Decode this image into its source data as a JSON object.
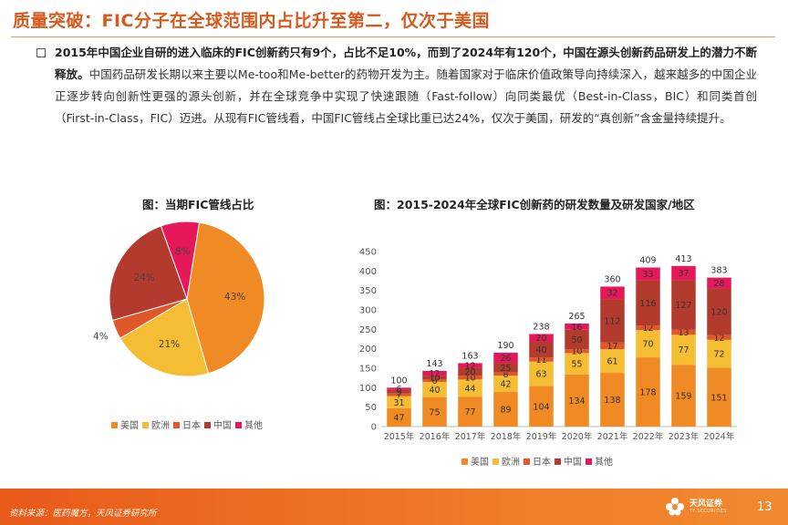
{
  "page": {
    "title": "质量突破：FIC分子在全球范围内占比升至第二，仅次于美国",
    "paragraph_bold": "2015年中国企业自研的进入临床的FIC创新药只有9个，占比不足10%，而到了2024年有120个，中国在源头创新药品研发上的潜力不断释放。",
    "paragraph_rest": "中国药品研发长期以来主要以Me-too和Me-better的药物开发为主。随着国家对于临床价值政策导向持续深入，越来越多的中国企业正逐步转向创新性更强的源头创新，并在全球竞争中实现了快速跟随（Fast-follow）向同类最优（Best-in-Class，BIC）和同类首创（First-in-Class，FIC）迈进。从现有FIC管线看，中国FIC管线占全球比重已达24%，仅次于美国，研发的“真创新”含金量持续提升。"
  },
  "colors": {
    "us": "#f08a24",
    "eu": "#f5bd34",
    "japan": "#e0582a",
    "china": "#b23b2e",
    "other": "#e5195a"
  },
  "chart_data": [
    {
      "type": "pie",
      "title": "图：当期FIC管线占比",
      "labels": [
        "美国",
        "欧洲",
        "日本",
        "中国",
        "其他"
      ],
      "values": [
        43,
        21,
        4,
        24,
        8
      ],
      "value_labels": [
        "43%",
        "21%",
        "4%",
        "24%",
        "8%"
      ],
      "legend": "bottom"
    },
    {
      "type": "bar",
      "stacked": true,
      "title": "图：2015-2024年全球FIC创新药的研发数量及研发国家/地区",
      "categories": [
        "2015年",
        "2016年",
        "2017年",
        "2018年",
        "2019年",
        "2020年",
        "2021年",
        "2022年",
        "2023年",
        "2024年"
      ],
      "series": [
        {
          "name": "美国",
          "values": [
            47,
            75,
            77,
            89,
            104,
            134,
            138,
            178,
            159,
            151
          ]
        },
        {
          "name": "欧洲",
          "values": [
            31,
            40,
            44,
            42,
            63,
            55,
            61,
            70,
            77,
            72
          ]
        },
        {
          "name": "日本",
          "values": [
            7,
            6,
            10,
            8,
            11,
            10,
            17,
            12,
            13,
            12
          ]
        },
        {
          "name": "中国",
          "values": [
            9,
            10,
            20,
            25,
            40,
            50,
            112,
            116,
            127,
            120
          ]
        },
        {
          "name": "其他",
          "values": [
            6,
            12,
            12,
            26,
            20,
            16,
            32,
            33,
            37,
            28
          ]
        }
      ],
      "totals": [
        100,
        143,
        163,
        190,
        238,
        265,
        360,
        409,
        413,
        383
      ],
      "ylim": [
        0,
        450
      ],
      "yticks": [
        0,
        50,
        100,
        150,
        200,
        250,
        300,
        350,
        400,
        450
      ],
      "legend": "bottom"
    }
  ],
  "footer": {
    "source": "资料来源：医药魔方，天风证券研究所",
    "brand": "天风证券",
    "brand_sub": "TF SECURITIES",
    "page_number": "13"
  }
}
